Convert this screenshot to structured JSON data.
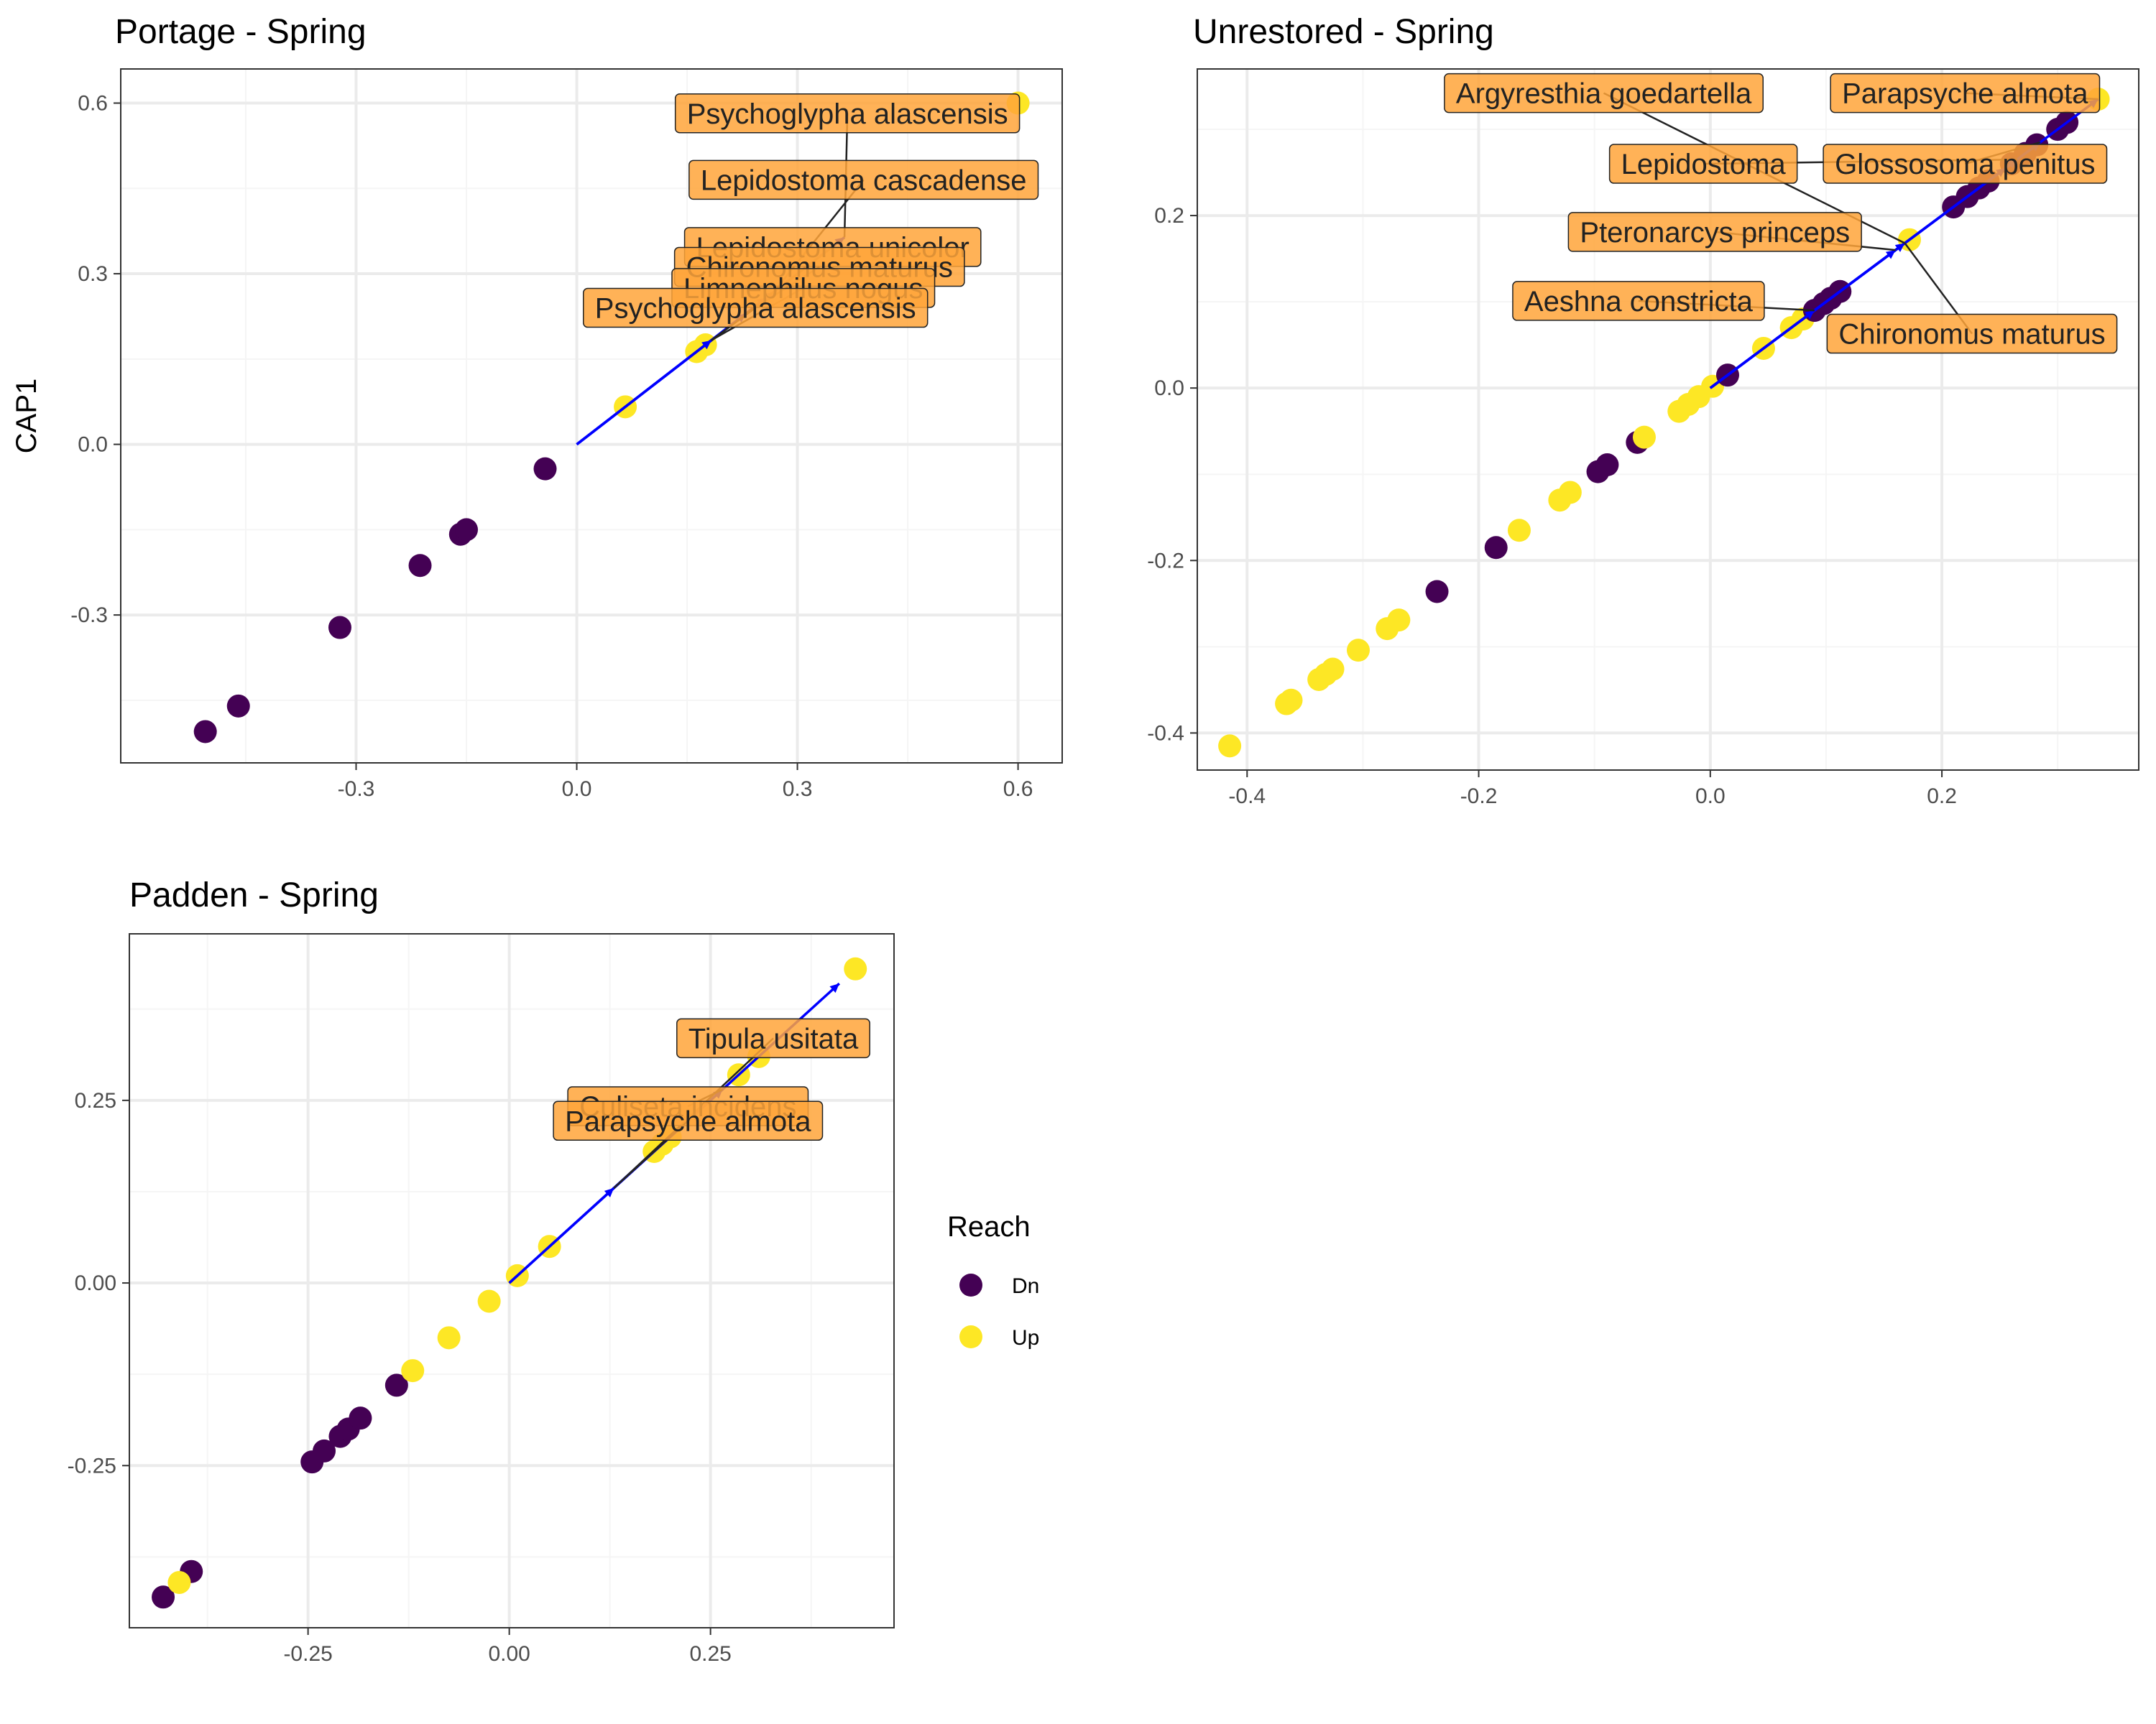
{
  "chart_data": [
    {
      "type": "scatter",
      "title": "Portage - Spring",
      "xlabel": "",
      "ylabel": "CAP1",
      "xlim": [
        -0.62,
        0.66
      ],
      "ylim": [
        -0.56,
        0.66
      ],
      "x_ticks": [
        -0.3,
        0.0,
        0.3,
        0.6
      ],
      "x_tick_labels": [
        "-0.3",
        "0.0",
        "0.3",
        "0.6"
      ],
      "y_ticks": [
        -0.3,
        0.0,
        0.3,
        0.6
      ],
      "y_tick_labels": [
        "-0.3",
        "0.0",
        "0.3",
        "0.6"
      ],
      "grid": true,
      "points": [
        {
          "x": -0.505,
          "y": -0.505,
          "reach": "Dn"
        },
        {
          "x": -0.46,
          "y": -0.46,
          "reach": "Dn"
        },
        {
          "x": -0.322,
          "y": -0.322,
          "reach": "Dn"
        },
        {
          "x": -0.213,
          "y": -0.213,
          "reach": "Dn"
        },
        {
          "x": -0.158,
          "y": -0.158,
          "reach": "Dn"
        },
        {
          "x": -0.15,
          "y": -0.15,
          "reach": "Dn"
        },
        {
          "x": -0.043,
          "y": -0.043,
          "reach": "Dn"
        },
        {
          "x": 0.066,
          "y": 0.066,
          "reach": "Up"
        },
        {
          "x": 0.163,
          "y": 0.163,
          "reach": "Up"
        },
        {
          "x": 0.175,
          "y": 0.175,
          "reach": "Up"
        },
        {
          "x": 0.6,
          "y": 0.6,
          "reach": "Up"
        }
      ],
      "vectors": [
        {
          "x": 0.183,
          "y": 0.183
        },
        {
          "x": 0.23,
          "y": 0.23
        },
        {
          "x": 0.258,
          "y": 0.258
        },
        {
          "x": 0.268,
          "y": 0.268
        },
        {
          "x": 0.364,
          "y": 0.364
        }
      ],
      "labels": [
        {
          "text": "Psychoglypha alascensis",
          "at": [
            0.368,
            0.582
          ],
          "to": [
            0.364,
            0.364
          ]
        },
        {
          "text": "Lepidostoma cascadense",
          "at": [
            0.39,
            0.465
          ],
          "to": [
            0.268,
            0.268
          ]
        },
        {
          "text": "Lepidostoma unicolor",
          "at": [
            0.348,
            0.347
          ],
          "to": [
            0.258,
            0.258
          ]
        },
        {
          "text": "Chironomus maturus",
          "at": [
            0.33,
            0.312
          ],
          "to": [
            0.23,
            0.23
          ]
        },
        {
          "text": "Limnephilus nogus",
          "at": [
            0.308,
            0.275
          ],
          "to": [
            0.183,
            0.183
          ]
        },
        {
          "text": "Psychoglypha alascensis",
          "at": [
            0.243,
            0.24
          ],
          "to": [
            0.183,
            0.183
          ]
        }
      ]
    },
    {
      "type": "scatter",
      "title": "Unrestored - Spring",
      "xlabel": "",
      "ylabel": "",
      "xlim": [
        -0.443,
        0.37
      ],
      "ylim": [
        -0.443,
        0.37
      ],
      "x_ticks": [
        -0.4,
        -0.2,
        0.0,
        0.2
      ],
      "x_tick_labels": [
        "-0.4",
        "-0.2",
        "0.0",
        "0.2"
      ],
      "y_ticks": [
        -0.4,
        -0.2,
        0.0,
        0.2
      ],
      "y_tick_labels": [
        "-0.4",
        "-0.2",
        "0.0",
        "0.2"
      ],
      "grid": true,
      "points": [
        {
          "x": -0.415,
          "y": -0.415,
          "reach": "Up"
        },
        {
          "x": -0.366,
          "y": -0.366,
          "reach": "Up"
        },
        {
          "x": -0.362,
          "y": -0.362,
          "reach": "Up"
        },
        {
          "x": -0.338,
          "y": -0.338,
          "reach": "Up"
        },
        {
          "x": -0.332,
          "y": -0.332,
          "reach": "Up"
        },
        {
          "x": -0.326,
          "y": -0.326,
          "reach": "Up"
        },
        {
          "x": -0.304,
          "y": -0.304,
          "reach": "Up"
        },
        {
          "x": -0.279,
          "y": -0.279,
          "reach": "Up"
        },
        {
          "x": -0.269,
          "y": -0.269,
          "reach": "Up"
        },
        {
          "x": -0.236,
          "y": -0.236,
          "reach": "Dn"
        },
        {
          "x": -0.185,
          "y": -0.185,
          "reach": "Dn"
        },
        {
          "x": -0.165,
          "y": -0.165,
          "reach": "Up"
        },
        {
          "x": -0.13,
          "y": -0.13,
          "reach": "Up"
        },
        {
          "x": -0.121,
          "y": -0.121,
          "reach": "Up"
        },
        {
          "x": -0.097,
          "y": -0.097,
          "reach": "Dn"
        },
        {
          "x": -0.089,
          "y": -0.089,
          "reach": "Dn"
        },
        {
          "x": -0.063,
          "y": -0.063,
          "reach": "Dn"
        },
        {
          "x": -0.057,
          "y": -0.057,
          "reach": "Up"
        },
        {
          "x": -0.027,
          "y": -0.027,
          "reach": "Up"
        },
        {
          "x": -0.019,
          "y": -0.019,
          "reach": "Up"
        },
        {
          "x": -0.01,
          "y": -0.01,
          "reach": "Up"
        },
        {
          "x": 0.002,
          "y": 0.002,
          "reach": "Up"
        },
        {
          "x": 0.015,
          "y": 0.015,
          "reach": "Dn"
        },
        {
          "x": 0.046,
          "y": 0.046,
          "reach": "Up"
        },
        {
          "x": 0.07,
          "y": 0.07,
          "reach": "Up"
        },
        {
          "x": 0.08,
          "y": 0.08,
          "reach": "Up"
        },
        {
          "x": 0.09,
          "y": 0.09,
          "reach": "Dn"
        },
        {
          "x": 0.098,
          "y": 0.098,
          "reach": "Dn"
        },
        {
          "x": 0.104,
          "y": 0.104,
          "reach": "Dn"
        },
        {
          "x": 0.112,
          "y": 0.112,
          "reach": "Dn"
        },
        {
          "x": 0.172,
          "y": 0.172,
          "reach": "Up"
        },
        {
          "x": 0.21,
          "y": 0.21,
          "reach": "Dn"
        },
        {
          "x": 0.222,
          "y": 0.222,
          "reach": "Dn"
        },
        {
          "x": 0.232,
          "y": 0.232,
          "reach": "Dn"
        },
        {
          "x": 0.24,
          "y": 0.24,
          "reach": "Dn"
        },
        {
          "x": 0.26,
          "y": 0.26,
          "reach": "Dn"
        },
        {
          "x": 0.272,
          "y": 0.272,
          "reach": "Dn"
        },
        {
          "x": 0.282,
          "y": 0.282,
          "reach": "Dn"
        },
        {
          "x": 0.3,
          "y": 0.3,
          "reach": "Dn"
        },
        {
          "x": 0.308,
          "y": 0.308,
          "reach": "Dn"
        },
        {
          "x": 0.335,
          "y": 0.335,
          "reach": "Up"
        }
      ],
      "vectors": [
        {
          "x": 0.09,
          "y": 0.09
        },
        {
          "x": 0.16,
          "y": 0.16
        },
        {
          "x": 0.168,
          "y": 0.168
        },
        {
          "x": 0.255,
          "y": 0.255
        },
        {
          "x": 0.265,
          "y": 0.265
        },
        {
          "x": 0.285,
          "y": 0.285
        },
        {
          "x": 0.335,
          "y": 0.335
        }
      ],
      "labels": [
        {
          "text": "Argyresthia goedartella",
          "at": [
            -0.092,
            0.342
          ],
          "to": [
            0.168,
            0.168
          ]
        },
        {
          "text": "Parapsyche almota",
          "at": [
            0.22,
            0.342
          ],
          "to": [
            0.335,
            0.335
          ]
        },
        {
          "text": "Lepidostoma",
          "at": [
            -0.006,
            0.26
          ],
          "to": [
            0.265,
            0.265
          ]
        },
        {
          "text": "Glossosoma penitus",
          "at": [
            0.22,
            0.26
          ],
          "to": [
            0.285,
            0.285
          ]
        },
        {
          "text": "Pteronarcys princeps",
          "at": [
            0.004,
            0.181
          ],
          "to": [
            0.16,
            0.16
          ]
        },
        {
          "text": "Aeshna constricta",
          "at": [
            -0.062,
            0.101
          ],
          "to": [
            0.09,
            0.09
          ]
        },
        {
          "text": "Chironomus maturus",
          "at": [
            0.226,
            0.063
          ],
          "to": [
            0.168,
            0.168
          ]
        }
      ]
    },
    {
      "type": "scatter",
      "title": "Padden - Spring",
      "xlabel": "",
      "ylabel": "",
      "xlim": [
        -0.472,
        0.478
      ],
      "ylim": [
        -0.472,
        0.478
      ],
      "x_ticks": [
        -0.25,
        0.0,
        0.25
      ],
      "x_tick_labels": [
        "-0.25",
        "0.00",
        "0.25"
      ],
      "y_ticks": [
        -0.25,
        0.0,
        0.25
      ],
      "y_tick_labels": [
        "-0.25",
        "0.00",
        "0.25"
      ],
      "grid": true,
      "points": [
        {
          "x": -0.43,
          "y": -0.43,
          "reach": "Dn"
        },
        {
          "x": -0.395,
          "y": -0.395,
          "reach": "Dn"
        },
        {
          "x": -0.41,
          "y": -0.41,
          "reach": "Up"
        },
        {
          "x": -0.245,
          "y": -0.245,
          "reach": "Dn"
        },
        {
          "x": -0.23,
          "y": -0.23,
          "reach": "Dn"
        },
        {
          "x": -0.21,
          "y": -0.21,
          "reach": "Dn"
        },
        {
          "x": -0.2,
          "y": -0.2,
          "reach": "Dn"
        },
        {
          "x": -0.185,
          "y": -0.185,
          "reach": "Dn"
        },
        {
          "x": -0.14,
          "y": -0.14,
          "reach": "Dn"
        },
        {
          "x": -0.12,
          "y": -0.12,
          "reach": "Up"
        },
        {
          "x": -0.075,
          "y": -0.075,
          "reach": "Up"
        },
        {
          "x": -0.025,
          "y": -0.025,
          "reach": "Up"
        },
        {
          "x": 0.01,
          "y": 0.01,
          "reach": "Up"
        },
        {
          "x": 0.05,
          "y": 0.05,
          "reach": "Up"
        },
        {
          "x": 0.18,
          "y": 0.18,
          "reach": "Up"
        },
        {
          "x": 0.19,
          "y": 0.19,
          "reach": "Up"
        },
        {
          "x": 0.2,
          "y": 0.2,
          "reach": "Up"
        },
        {
          "x": 0.285,
          "y": 0.285,
          "reach": "Up"
        },
        {
          "x": 0.31,
          "y": 0.31,
          "reach": "Up"
        },
        {
          "x": 0.43,
          "y": 0.43,
          "reach": "Up"
        }
      ],
      "vectors": [
        {
          "x": 0.13,
          "y": 0.13
        },
        {
          "x": 0.265,
          "y": 0.265
        },
        {
          "x": 0.41,
          "y": 0.41
        }
      ],
      "labels": [
        {
          "text": "Tipula usitata",
          "at": [
            0.328,
            0.335
          ],
          "to": [
            0.13,
            0.13
          ]
        },
        {
          "text": "Culiseta incidens",
          "at": [
            0.222,
            0.242
          ],
          "to": [
            0.265,
            0.265
          ]
        },
        {
          "text": "Parapsyche almota",
          "at": [
            0.222,
            0.222
          ],
          "to": [
            0.13,
            0.13
          ]
        }
      ]
    }
  ],
  "legend": {
    "title": "Reach",
    "placement": "right",
    "items": [
      {
        "label": "Dn",
        "color": "#440154"
      },
      {
        "label": "Up",
        "color": "#FDE725"
      }
    ]
  },
  "colors": {
    "vector": "#0000FF",
    "label_fill": "#FFA53A",
    "panel_border": "#333333",
    "grid_major": "#EBEBEB",
    "grid_minor": "#F5F5F5"
  }
}
